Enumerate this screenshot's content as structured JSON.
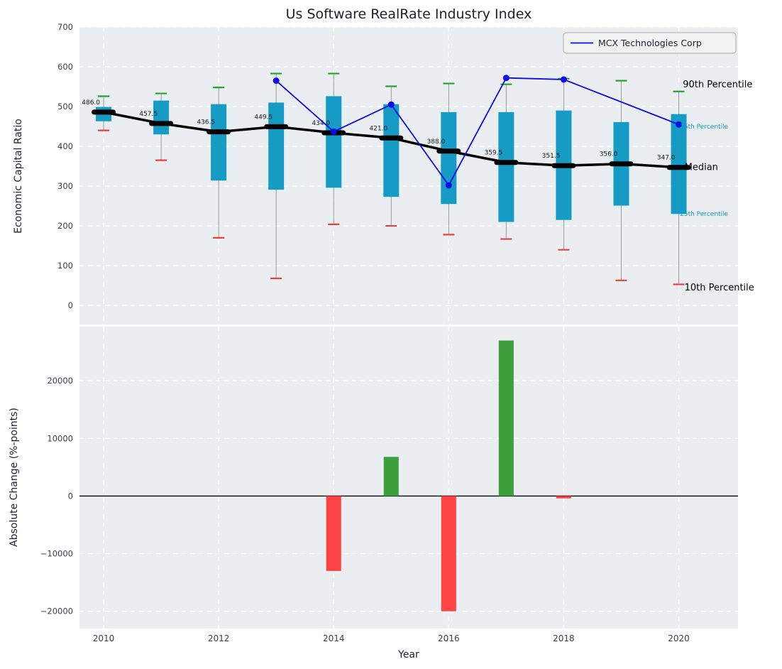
{
  "figure": {
    "background": "#ffffff",
    "axes_background": "#eaeef1",
    "grid_color": "#ffffff",
    "tick_color": "#3b3b52",
    "text_color": "#1f1f30"
  },
  "chart_data": [
    {
      "type": "boxplot+line",
      "title": "Us Software RealRate Industry Index",
      "ylabel": "Economic Capital Ratio",
      "ylim": [
        -48,
        700
      ],
      "yticks": [
        0,
        100,
        200,
        300,
        400,
        500,
        600,
        700
      ],
      "xlim": [
        2009.58,
        2021.03
      ],
      "grid_xticks": [
        2010,
        2012,
        2014,
        2016,
        2018,
        2020
      ],
      "box_color": "#169bc5",
      "p90_cap_color": "#2ca02c",
      "p10_cap_color": "#e83e3e",
      "whisker_color": "#999999",
      "median_color": "#000000",
      "years": [
        2010,
        2011,
        2012,
        2013,
        2014,
        2015,
        2016,
        2017,
        2018,
        2019,
        2020
      ],
      "median": [
        486.0,
        457.5,
        436.5,
        449.5,
        434.0,
        421.0,
        388.0,
        359.5,
        351.5,
        356.0,
        347.0
      ],
      "q1": [
        463,
        430,
        314,
        291,
        296,
        273,
        255,
        210,
        215,
        251,
        230
      ],
      "q3": [
        499,
        515,
        506,
        510,
        526,
        506,
        486,
        486,
        490,
        461,
        481
      ],
      "p10": [
        440,
        365,
        170,
        68,
        204,
        200,
        178,
        167,
        140,
        63,
        53
      ],
      "p90": [
        526,
        533,
        548,
        583,
        583,
        551,
        558,
        556,
        570,
        565,
        538
      ],
      "median_labels": [
        "486.0",
        "457.5",
        "436.5",
        "449.5",
        "434.0",
        "421.0",
        "388.0",
        "359.5",
        "351.5",
        "356.0",
        "347.0"
      ],
      "series": {
        "name": "MCX Technologies Corp",
        "color": "#0d0de8",
        "x": [
          2013,
          2014,
          2015,
          2016,
          2017,
          2018,
          2020
        ],
        "y": [
          565,
          437,
          505,
          302,
          572,
          568,
          455
        ]
      },
      "annotations": [
        {
          "text": "90th Percentile",
          "x": 2020.07,
          "y": 555,
          "color": "#000000",
          "size": 13
        },
        {
          "text": "75th Percentile",
          "x": 2020.02,
          "y": 452,
          "color": "#169bc5",
          "size": 9
        },
        {
          "text": "Median",
          "x": 2020.1,
          "y": 347,
          "color": "#000000",
          "size": 13
        },
        {
          "text": "25th Percentile",
          "x": 2020.02,
          "y": 232,
          "color": "#169bc5",
          "size": 9
        },
        {
          "text": "10th Percentile",
          "x": 2020.1,
          "y": 45,
          "color": "#000000",
          "size": 13
        }
      ]
    },
    {
      "type": "bar",
      "xlabel": "Year",
      "ylabel": "Absolute Change (%-points)",
      "ylim": [
        -23000,
        29400
      ],
      "yticks": [
        -20000,
        -10000,
        0,
        10000,
        20000
      ],
      "ytick_labels": [
        "−20000",
        "−10000",
        "0",
        "10000",
        "20000"
      ],
      "xticks": [
        2010,
        2012,
        2014,
        2016,
        2018,
        2020
      ],
      "xtick_labels": [
        "2010",
        "2012",
        "2014",
        "2016",
        "2018",
        "2020"
      ],
      "bar_width_years": 0.26,
      "positive_color": "#3da03d",
      "negative_color": "#fb4343",
      "bars": [
        {
          "x": 2014,
          "value": -13000
        },
        {
          "x": 2015,
          "value": 6800
        },
        {
          "x": 2016,
          "value": -20000
        },
        {
          "x": 2017,
          "value": 27000
        },
        {
          "x": 2018,
          "value": -400
        }
      ]
    }
  ]
}
